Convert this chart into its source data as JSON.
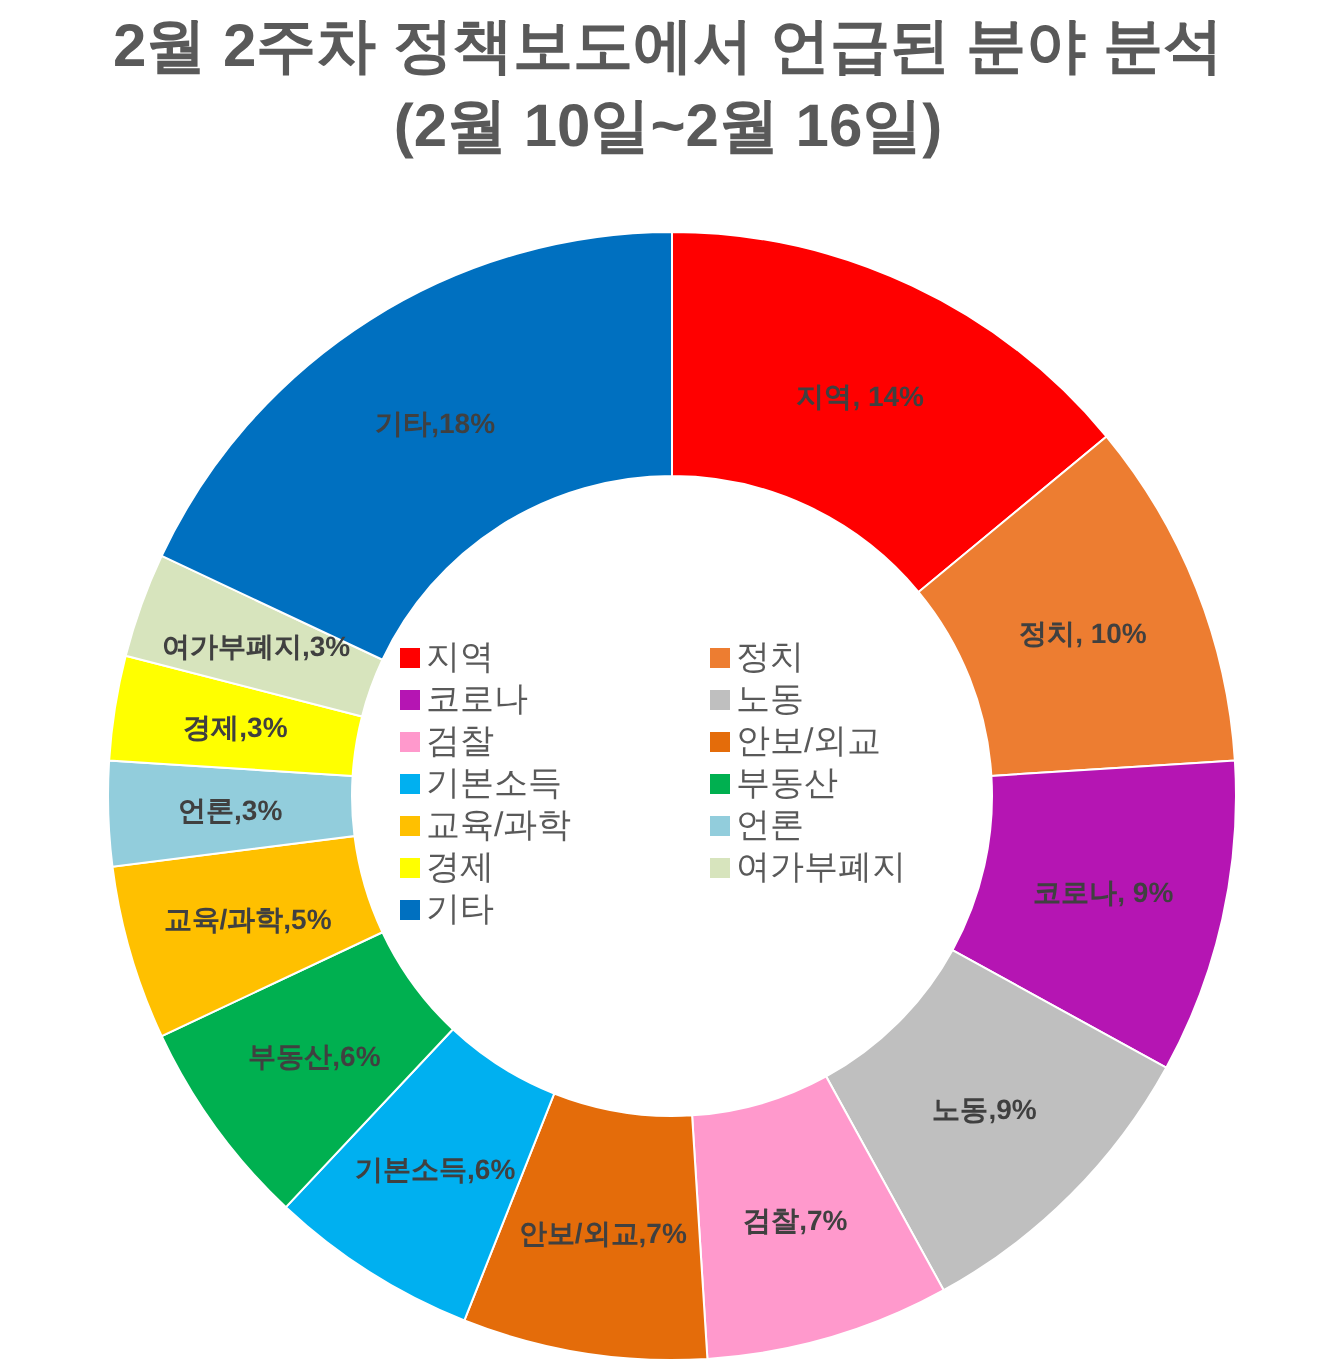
{
  "chart_data": {
    "type": "donut",
    "title": "2월 2주차 정책보도에서 언급된 분야 분석",
    "subtitle": "(2월 10일~2월 16일)",
    "categories": [
      "지역",
      "정치",
      "코로나",
      "노동",
      "검찰",
      "안보/외교",
      "기본소득",
      "부동산",
      "교육/과학",
      "언론",
      "경제",
      "여가부폐지",
      "기타"
    ],
    "values": [
      14,
      10,
      9,
      9,
      7,
      7,
      6,
      6,
      5,
      3,
      3,
      3,
      18
    ],
    "colors": [
      "#ff0000",
      "#ed7d31",
      "#b515b3",
      "#bfbfbf",
      "#ff99cc",
      "#e46c0a",
      "#00b0f0",
      "#00b050",
      "#ffc000",
      "#92cddc",
      "#ffff00",
      "#d7e4bd",
      "#0070c0"
    ],
    "value_labels": [
      "지역, 14%",
      "정치, 10%",
      "코로나, 9%",
      "노동,9%",
      "검찰,7%",
      "안보/외교,7%",
      "기본소득,6%",
      "부동산,6%",
      "교육/과학,5%",
      "언론,3%",
      "경제,3%",
      "여가부폐지,3%",
      "기타,18%"
    ],
    "legend": "center"
  }
}
